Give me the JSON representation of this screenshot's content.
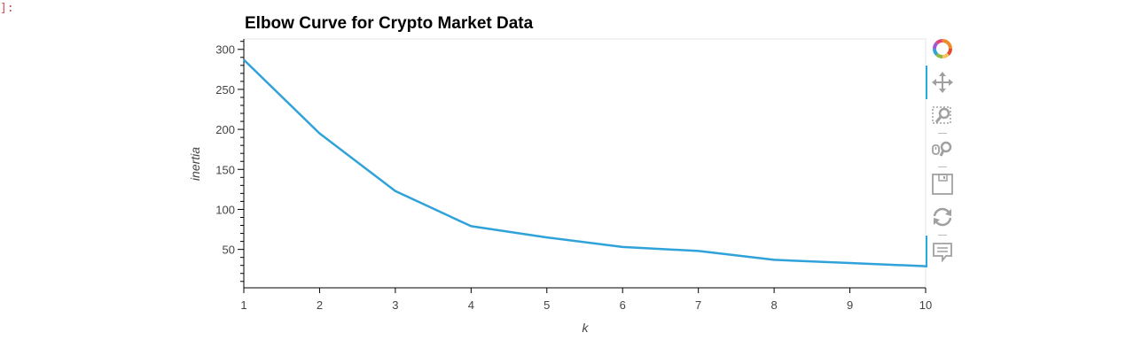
{
  "cell": {
    "prompt": "]:"
  },
  "chart_data": {
    "type": "line",
    "title": "Elbow Curve for Crypto Market Data",
    "xlabel": "k",
    "ylabel": "inertia",
    "xlim": [
      1,
      10
    ],
    "ylim": [
      2,
      313
    ],
    "x": [
      1,
      2,
      3,
      4,
      5,
      6,
      7,
      8,
      9,
      10
    ],
    "xticks": [
      1,
      2,
      3,
      4,
      5,
      6,
      7,
      8,
      9,
      10
    ],
    "yticks": [
      50,
      100,
      150,
      200,
      250,
      300
    ],
    "series": [
      {
        "values": [
          287,
          195,
          123,
          79,
          65,
          53,
          48,
          37,
          33,
          29
        ],
        "color": "#30a2da"
      }
    ],
    "grid": false,
    "legend": "none"
  },
  "toolbar": {
    "tools": [
      {
        "name": "bokeh-logo-icon"
      },
      {
        "name": "pan-icon"
      },
      {
        "name": "box-zoom-icon"
      },
      {
        "name": "wheel-zoom-icon"
      },
      {
        "name": "save-icon"
      },
      {
        "name": "reset-icon"
      },
      {
        "name": "hover-icon"
      }
    ],
    "accent": "#26aae1",
    "icon_color": "#a0a0a0"
  }
}
